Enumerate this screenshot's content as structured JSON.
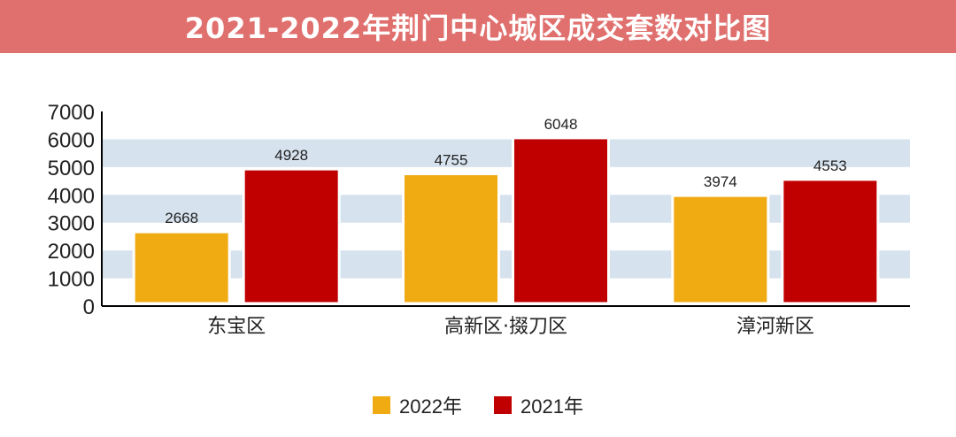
{
  "title": "2021-2022年荆门中心城区成交套数对比图",
  "colors": {
    "title_bg": "#e0706e",
    "series_2022": "#f0aa12",
    "series_2021": "#c00000",
    "band": "#d6e2ee"
  },
  "chart_data": {
    "type": "bar",
    "title": "2021-2022年荆门中心城区成交套数对比图",
    "categories": [
      "东宝区",
      "高新区·掇刀区",
      "漳河新区"
    ],
    "series": [
      {
        "name": "2022年",
        "values": [
          2668,
          4755,
          3974
        ]
      },
      {
        "name": "2021年",
        "values": [
          4928,
          6048,
          4553
        ]
      }
    ],
    "ylim": [
      0,
      7000
    ],
    "yticks": [
      0,
      1000,
      2000,
      3000,
      4000,
      5000,
      6000,
      7000
    ],
    "xlabel": "",
    "ylabel": "",
    "grid": "alternating horizontal bands",
    "legend_position": "bottom-center"
  }
}
